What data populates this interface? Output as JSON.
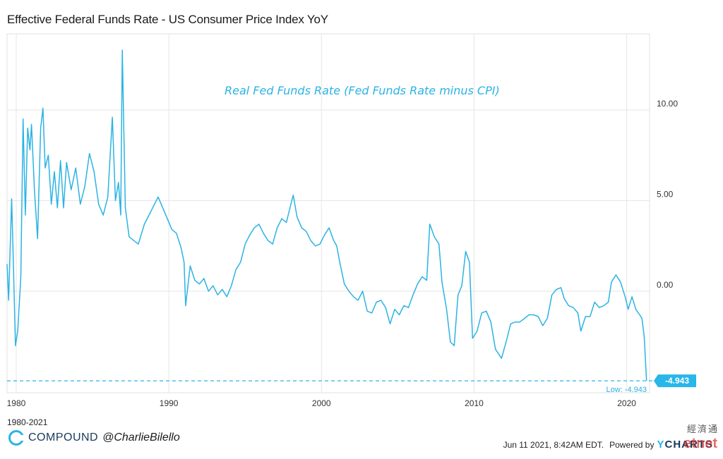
{
  "title": "Effective Federal Funds Rate - US Consumer Price Index YoY",
  "annotation": "Real Fed Funds Rate (Fed Funds Rate minus CPI)",
  "date_range": "1980-2021",
  "brand": {
    "name": "COMPOUND",
    "handle": "@CharlieBilello"
  },
  "footer": {
    "timestamp": "Jun 11 2021, 8:42AM EDT.",
    "powered_by": "Powered by",
    "ycharts_y": "Y",
    "ycharts_rest": "CHARTS"
  },
  "watermark": {
    "cn": "經濟通",
    "en": "etnet"
  },
  "colors": {
    "line": "#2bb3e3",
    "grid": "#e6e6e6",
    "callout": "#29b6e8"
  },
  "chart_data": {
    "type": "line",
    "title": "Effective Federal Funds Rate - US Consumer Price Index YoY",
    "xlabel": "",
    "ylabel": "",
    "xlim": [
      1979.4,
      2021.5
    ],
    "ylim": [
      -5.6,
      14.2
    ],
    "x_ticks": [
      "1980",
      "1990",
      "2000",
      "2010",
      "2020"
    ],
    "y_ticks": [
      "10.00",
      "5.00",
      "0.00"
    ],
    "grid": true,
    "min_label": "Low: -4.943",
    "last_value_label": "-4.943",
    "series": [
      {
        "points": [
          [
            1979.4,
            1.5
          ],
          [
            1979.5,
            -0.5
          ],
          [
            1979.7,
            5.1
          ],
          [
            1979.8,
            2.0
          ],
          [
            1979.95,
            -3.0
          ],
          [
            1980.1,
            -2.2
          ],
          [
            1980.3,
            0.8
          ],
          [
            1980.45,
            9.5
          ],
          [
            1980.6,
            4.2
          ],
          [
            1980.75,
            9.0
          ],
          [
            1980.9,
            7.8
          ],
          [
            1981.0,
            9.2
          ],
          [
            1981.2,
            5.5
          ],
          [
            1981.4,
            2.9
          ],
          [
            1981.6,
            9.0
          ],
          [
            1981.75,
            10.1
          ],
          [
            1981.9,
            6.8
          ],
          [
            1982.1,
            7.5
          ],
          [
            1982.3,
            4.8
          ],
          [
            1982.5,
            6.6
          ],
          [
            1982.7,
            4.6
          ],
          [
            1982.9,
            7.2
          ],
          [
            1983.1,
            4.6
          ],
          [
            1983.3,
            7.1
          ],
          [
            1983.6,
            5.6
          ],
          [
            1983.9,
            6.8
          ],
          [
            1984.2,
            4.8
          ],
          [
            1984.5,
            5.8
          ],
          [
            1984.8,
            7.6
          ],
          [
            1985.1,
            6.6
          ],
          [
            1985.4,
            4.8
          ],
          [
            1985.7,
            4.2
          ],
          [
            1986.0,
            5.2
          ],
          [
            1986.3,
            9.6
          ],
          [
            1986.5,
            5.0
          ],
          [
            1986.7,
            6.0
          ],
          [
            1986.85,
            4.2
          ],
          [
            1986.95,
            13.3
          ],
          [
            1987.15,
            4.6
          ],
          [
            1987.4,
            3.0
          ],
          [
            1987.7,
            2.8
          ],
          [
            1988.0,
            2.6
          ],
          [
            1988.4,
            3.7
          ],
          [
            1988.7,
            4.2
          ],
          [
            1989.0,
            4.7
          ],
          [
            1989.3,
            5.2
          ],
          [
            1989.6,
            4.6
          ],
          [
            1989.9,
            4.0
          ],
          [
            1990.2,
            3.4
          ],
          [
            1990.5,
            3.2
          ],
          [
            1990.8,
            2.4
          ],
          [
            1991.0,
            1.6
          ],
          [
            1991.1,
            -0.8
          ],
          [
            1991.4,
            1.4
          ],
          [
            1991.7,
            0.6
          ],
          [
            1992.0,
            0.4
          ],
          [
            1992.3,
            0.7
          ],
          [
            1992.6,
            0.0
          ],
          [
            1992.9,
            0.3
          ],
          [
            1993.2,
            -0.2
          ],
          [
            1993.5,
            0.1
          ],
          [
            1993.8,
            -0.3
          ],
          [
            1994.1,
            0.3
          ],
          [
            1994.4,
            1.2
          ],
          [
            1994.7,
            1.6
          ],
          [
            1995.0,
            2.6
          ],
          [
            1995.3,
            3.1
          ],
          [
            1995.6,
            3.5
          ],
          [
            1995.9,
            3.7
          ],
          [
            1996.2,
            3.2
          ],
          [
            1996.5,
            2.8
          ],
          [
            1996.8,
            2.6
          ],
          [
            1997.1,
            3.5
          ],
          [
            1997.4,
            4.0
          ],
          [
            1997.7,
            3.8
          ],
          [
            1998.0,
            4.8
          ],
          [
            1998.15,
            5.3
          ],
          [
            1998.4,
            4.1
          ],
          [
            1998.7,
            3.5
          ],
          [
            1999.0,
            3.3
          ],
          [
            1999.3,
            2.8
          ],
          [
            1999.6,
            2.5
          ],
          [
            1999.9,
            2.6
          ],
          [
            2000.2,
            3.1
          ],
          [
            2000.5,
            3.5
          ],
          [
            2000.8,
            2.8
          ],
          [
            2001.0,
            2.5
          ],
          [
            2001.2,
            1.6
          ],
          [
            2001.5,
            0.4
          ],
          [
            2001.8,
            0.0
          ],
          [
            2002.1,
            -0.3
          ],
          [
            2002.4,
            -0.5
          ],
          [
            2002.7,
            0.0
          ],
          [
            2003.0,
            -1.1
          ],
          [
            2003.3,
            -1.2
          ],
          [
            2003.6,
            -0.6
          ],
          [
            2003.9,
            -0.5
          ],
          [
            2004.2,
            -0.9
          ],
          [
            2004.5,
            -1.8
          ],
          [
            2004.8,
            -1.0
          ],
          [
            2005.1,
            -1.3
          ],
          [
            2005.4,
            -0.8
          ],
          [
            2005.7,
            -0.9
          ],
          [
            2006.0,
            -0.2
          ],
          [
            2006.3,
            0.4
          ],
          [
            2006.6,
            0.8
          ],
          [
            2006.9,
            0.6
          ],
          [
            2007.1,
            3.7
          ],
          [
            2007.4,
            3.0
          ],
          [
            2007.7,
            2.6
          ],
          [
            2007.9,
            0.5
          ],
          [
            2008.2,
            -1.0
          ],
          [
            2008.45,
            -2.8
          ],
          [
            2008.7,
            -3.0
          ],
          [
            2008.95,
            -0.2
          ],
          [
            2009.2,
            0.3
          ],
          [
            2009.45,
            2.2
          ],
          [
            2009.7,
            1.6
          ],
          [
            2009.9,
            -2.6
          ],
          [
            2010.2,
            -2.2
          ],
          [
            2010.5,
            -1.2
          ],
          [
            2010.8,
            -1.1
          ],
          [
            2011.1,
            -1.7
          ],
          [
            2011.4,
            -3.2
          ],
          [
            2011.8,
            -3.7
          ],
          [
            2012.1,
            -2.8
          ],
          [
            2012.4,
            -1.8
          ],
          [
            2012.7,
            -1.7
          ],
          [
            2013.0,
            -1.7
          ],
          [
            2013.3,
            -1.5
          ],
          [
            2013.6,
            -1.3
          ],
          [
            2013.9,
            -1.3
          ],
          [
            2014.2,
            -1.4
          ],
          [
            2014.5,
            -1.9
          ],
          [
            2014.8,
            -1.5
          ],
          [
            2015.1,
            -0.2
          ],
          [
            2015.4,
            0.1
          ],
          [
            2015.7,
            0.2
          ],
          [
            2015.9,
            -0.4
          ],
          [
            2016.2,
            -0.8
          ],
          [
            2016.5,
            -0.9
          ],
          [
            2016.8,
            -1.2
          ],
          [
            2017.0,
            -2.2
          ],
          [
            2017.3,
            -1.4
          ],
          [
            2017.6,
            -1.4
          ],
          [
            2017.9,
            -0.6
          ],
          [
            2018.2,
            -0.9
          ],
          [
            2018.5,
            -0.8
          ],
          [
            2018.8,
            -0.6
          ],
          [
            2019.0,
            0.5
          ],
          [
            2019.3,
            0.9
          ],
          [
            2019.6,
            0.5
          ],
          [
            2019.9,
            -0.3
          ],
          [
            2020.1,
            -1.0
          ],
          [
            2020.35,
            -0.3
          ],
          [
            2020.6,
            -1.0
          ],
          [
            2020.85,
            -1.3
          ],
          [
            2021.0,
            -1.5
          ],
          [
            2021.15,
            -2.5
          ],
          [
            2021.3,
            -4.943
          ]
        ]
      }
    ]
  }
}
